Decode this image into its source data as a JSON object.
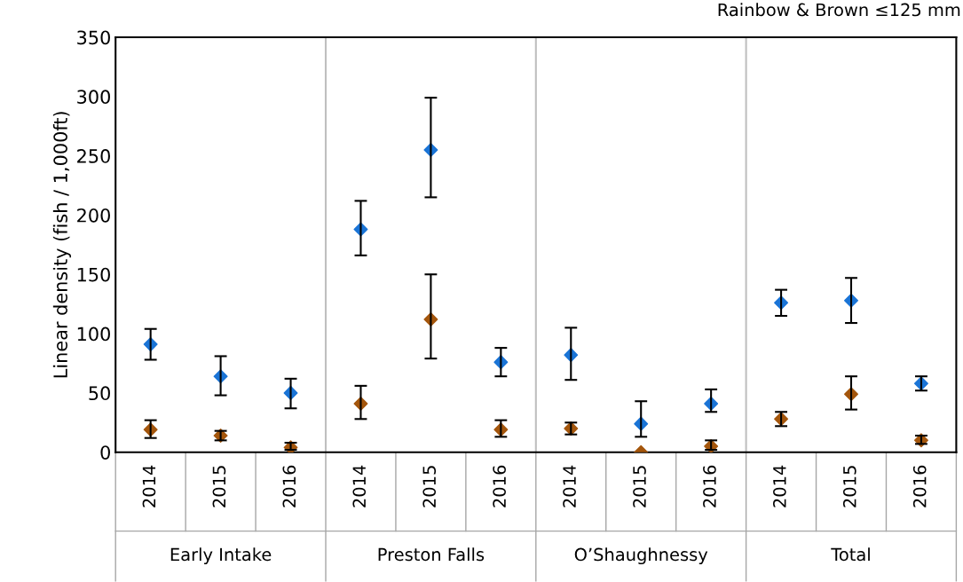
{
  "chart_data": {
    "type": "scatter",
    "title": "Rainbow & Brown ≤125 mm",
    "ylabel": "Linear density (fish / 1,000ft)",
    "categories": [
      "2014",
      "2015",
      "2016",
      "2014",
      "2015",
      "2016",
      "2014",
      "2015",
      "2016",
      "2014",
      "2015",
      "2016"
    ],
    "annotations": [
      "Early Intake",
      "Preston Falls",
      "O’Shaughnessy",
      "Total"
    ],
    "series": [
      {
        "color": "#1a74d6",
        "values": [
          91,
          64,
          50,
          188,
          255,
          76,
          82,
          24,
          41,
          126,
          128,
          58
        ],
        "errors": [
          [
            78,
            104
          ],
          [
            48,
            81
          ],
          [
            37,
            62
          ],
          [
            166,
            212
          ],
          [
            215,
            299
          ],
          [
            64,
            88
          ],
          [
            61,
            105
          ],
          [
            13,
            43
          ],
          [
            34,
            53
          ],
          [
            115,
            137
          ],
          [
            109,
            147
          ],
          [
            52,
            64
          ]
        ]
      },
      {
        "color": "#a4560c",
        "values": [
          19,
          14,
          4,
          41,
          112,
          19,
          20,
          0,
          5,
          28,
          49,
          10
        ],
        "errors": [
          [
            12,
            27
          ],
          [
            10,
            18
          ],
          [
            2,
            8
          ],
          [
            28,
            56
          ],
          [
            79,
            150
          ],
          [
            13,
            27
          ],
          [
            15,
            25
          ],
          null,
          [
            2,
            10
          ],
          [
            22,
            34
          ],
          [
            36,
            64
          ],
          [
            7,
            14
          ]
        ]
      }
    ],
    "ylim": [
      0,
      350
    ],
    "yticks": [
      0,
      50,
      100,
      150,
      200,
      250,
      300,
      350
    ],
    "grid": false,
    "marker": "diamond"
  }
}
